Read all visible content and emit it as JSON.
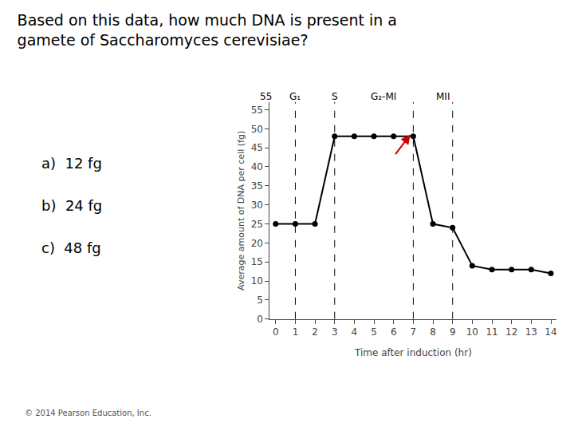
{
  "chart_data": {
    "type": "line",
    "title": "Based on this data, how much DNA is present in a\ngamete of Saccharomyces cerevisiae?",
    "xlabel": "Time after induction (hr)",
    "ylabel": "Average amount of DNA per cell (fg)",
    "x": [
      0,
      1,
      2,
      3,
      4,
      5,
      6,
      7,
      8,
      9,
      10,
      11,
      12,
      13,
      14
    ],
    "values": [
      25,
      25,
      25,
      48,
      48,
      48,
      48,
      48,
      25,
      24,
      14,
      13,
      13,
      13,
      12
    ],
    "color": "#000000",
    "marker": "circle",
    "line_style": "solid",
    "xlim": [
      -0.3,
      14.3
    ],
    "xticks": [
      0,
      1,
      2,
      3,
      4,
      5,
      6,
      7,
      8,
      9,
      10,
      11,
      12,
      13,
      14
    ],
    "ylim": [
      0,
      57
    ],
    "yticks": [
      0,
      5,
      10,
      15,
      20,
      25,
      30,
      35,
      40,
      45,
      50,
      55
    ],
    "grid": false,
    "vlines": {
      "x": [
        1,
        3,
        7,
        9
      ],
      "line_style": "dashed",
      "color": "#000000"
    },
    "arrows": [
      {
        "x0": 6.05,
        "y0": 43,
        "x1": 6.85,
        "y1": 48.5,
        "color": "#cc0000"
      }
    ],
    "annotations": [
      {
        "text": "G₁",
        "x": 1,
        "y": 56.5
      },
      {
        "text": "S",
        "x": 3,
        "y": 56.5
      },
      {
        "text": "G₂-MI",
        "x": 5.5,
        "y": 56.5
      },
      {
        "text": "MII",
        "x": 8.5,
        "y": 56.5
      },
      {
        "text": "55",
        "x": -0.5,
        "y": 56.5
      },
      {
        "text": "a)  12 fg"
      },
      {
        "text": "b)  24 fg"
      },
      {
        "text": "c)  48 fg"
      },
      {
        "text": "© 2014 Pearson Education, Inc."
      }
    ]
  }
}
